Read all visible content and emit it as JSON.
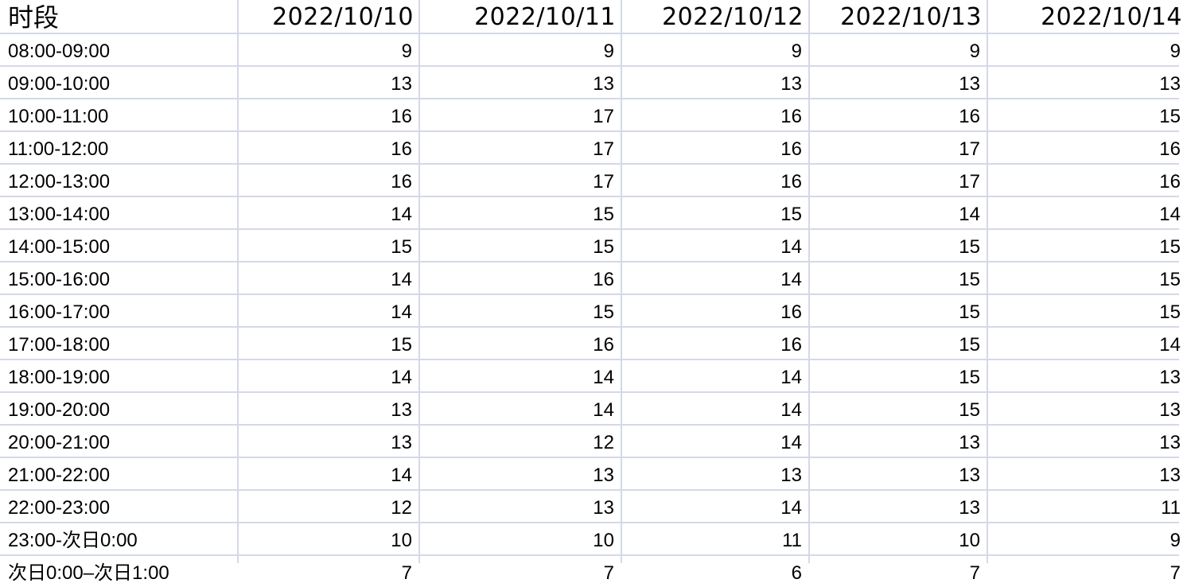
{
  "sheet": {
    "headers": [
      "时段",
      "2022/10/10",
      "2022/10/11",
      "2022/10/12",
      "2022/10/13",
      "2022/10/14"
    ],
    "rows": [
      {
        "period": "08:00-09:00",
        "values": [
          9,
          9,
          9,
          9,
          9
        ]
      },
      {
        "period": "09:00-10:00",
        "values": [
          13,
          13,
          13,
          13,
          13
        ]
      },
      {
        "period": "10:00-11:00",
        "values": [
          16,
          17,
          16,
          16,
          15
        ]
      },
      {
        "period": "11:00-12:00",
        "values": [
          16,
          17,
          16,
          17,
          16
        ]
      },
      {
        "period": "12:00-13:00",
        "values": [
          16,
          17,
          16,
          17,
          16
        ]
      },
      {
        "period": "13:00-14:00",
        "values": [
          14,
          15,
          15,
          14,
          14
        ]
      },
      {
        "period": "14:00-15:00",
        "values": [
          15,
          15,
          14,
          15,
          15
        ]
      },
      {
        "period": "15:00-16:00",
        "values": [
          14,
          16,
          14,
          15,
          15
        ]
      },
      {
        "period": "16:00-17:00",
        "values": [
          14,
          15,
          16,
          15,
          15
        ]
      },
      {
        "period": "17:00-18:00",
        "values": [
          15,
          16,
          16,
          15,
          14
        ]
      },
      {
        "period": "18:00-19:00",
        "values": [
          14,
          14,
          14,
          15,
          13
        ]
      },
      {
        "period": "19:00-20:00",
        "values": [
          13,
          14,
          14,
          15,
          13
        ]
      },
      {
        "period": "20:00-21:00",
        "values": [
          13,
          12,
          14,
          13,
          13
        ]
      },
      {
        "period": "21:00-22:00",
        "values": [
          14,
          13,
          13,
          13,
          13
        ]
      },
      {
        "period": "22:00-23:00",
        "values": [
          12,
          13,
          14,
          13,
          11
        ]
      },
      {
        "period": "23:00-次日0:00",
        "values": [
          10,
          10,
          11,
          10,
          9
        ]
      },
      {
        "period": "次日0:00–次日1:00",
        "values": [
          7,
          7,
          6,
          7,
          7
        ]
      }
    ]
  },
  "colors": {
    "gridline": "#d3d9e5",
    "cell_background": "#ffffff",
    "text": "#000000"
  }
}
